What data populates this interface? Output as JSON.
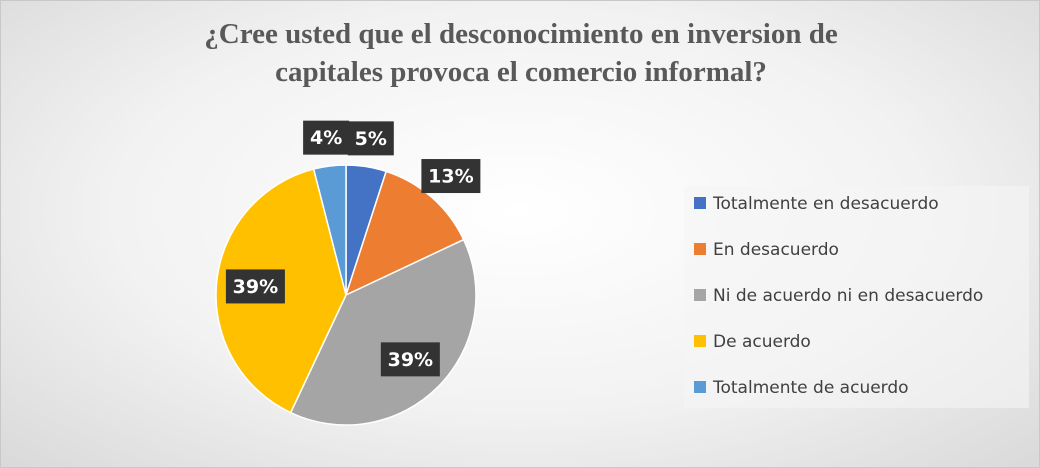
{
  "chart_data": {
    "type": "pie",
    "title": "¿Cree usted que el desconocimiento en inversion de capitales provoca el comercio informal?",
    "categories": [
      "Totalmente en desacuerdo",
      "En desacuerdo",
      "Ni de acuerdo ni en desacuerdo",
      "De acuerdo",
      "Totalmente de acuerdo"
    ],
    "values": [
      5,
      13,
      39,
      39,
      4
    ],
    "value_labels": [
      "5%",
      "13%",
      "39%",
      "39%",
      "4%"
    ],
    "colors": [
      "#4472c4",
      "#ed7d31",
      "#a5a5a5",
      "#ffc000",
      "#5b9bd5"
    ],
    "legend": "right"
  }
}
